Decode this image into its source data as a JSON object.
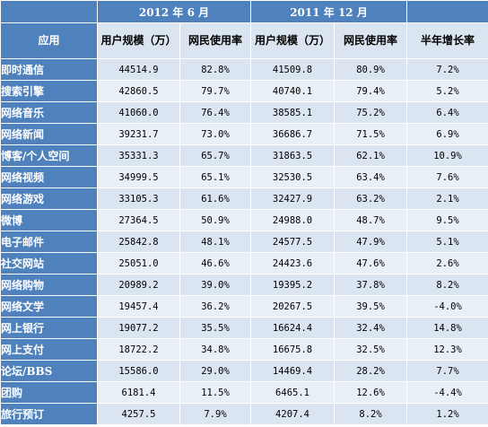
{
  "header": {
    "period_2012": "2012 年 6 月",
    "period_2011": "2011 年 12 月",
    "col_app": "应用",
    "col_users_2012": "用户规模（万）",
    "col_rate_2012": "网民使用率",
    "col_users_2011": "用户规模（万）",
    "col_rate_2011": "网民使用率",
    "col_growth": "半年增长率"
  },
  "rows": [
    {
      "app": "即时通信",
      "u2012": "44514.9",
      "r2012": "82.8%",
      "u2011": "41509.8",
      "r2011": "80.9%",
      "growth": "7.2%"
    },
    {
      "app": "搜索引擎",
      "u2012": "42860.5",
      "r2012": "79.7%",
      "u2011": "40740.1",
      "r2011": "79.4%",
      "growth": "5.2%"
    },
    {
      "app": "网络音乐",
      "u2012": "41060.0",
      "r2012": "76.4%",
      "u2011": "38585.1",
      "r2011": "75.2%",
      "growth": "6.4%"
    },
    {
      "app": "网络新闻",
      "u2012": "39231.7",
      "r2012": "73.0%",
      "u2011": "36686.7",
      "r2011": "71.5%",
      "growth": "6.9%"
    },
    {
      "app": "博客/个人空间",
      "u2012": "35331.3",
      "r2012": "65.7%",
      "u2011": "31863.5",
      "r2011": "62.1%",
      "growth": "10.9%"
    },
    {
      "app": "网络视频",
      "u2012": "34999.5",
      "r2012": "65.1%",
      "u2011": "32530.5",
      "r2011": "63.4%",
      "growth": "7.6%"
    },
    {
      "app": "网络游戏",
      "u2012": "33105.3",
      "r2012": "61.6%",
      "u2011": "32427.9",
      "r2011": "63.2%",
      "growth": "2.1%"
    },
    {
      "app": "微博",
      "u2012": "27364.5",
      "r2012": "50.9%",
      "u2011": "24988.0",
      "r2011": "48.7%",
      "growth": "9.5%"
    },
    {
      "app": "电子邮件",
      "u2012": "25842.8",
      "r2012": "48.1%",
      "u2011": "24577.5",
      "r2011": "47.9%",
      "growth": "5.1%"
    },
    {
      "app": "社交网站",
      "u2012": "25051.0",
      "r2012": "46.6%",
      "u2011": "24423.6",
      "r2011": "47.6%",
      "growth": "2.6%"
    },
    {
      "app": "网络购物",
      "u2012": "20989.2",
      "r2012": "39.0%",
      "u2011": "19395.2",
      "r2011": "37.8%",
      "growth": "8.2%"
    },
    {
      "app": "网络文学",
      "u2012": "19457.4",
      "r2012": "36.2%",
      "u2011": "20267.5",
      "r2011": "39.5%",
      "growth": "-4.0%"
    },
    {
      "app": "网上银行",
      "u2012": "19077.2",
      "r2012": "35.5%",
      "u2011": "16624.4",
      "r2011": "32.4%",
      "growth": "14.8%"
    },
    {
      "app": "网上支付",
      "u2012": "18722.2",
      "r2012": "34.8%",
      "u2011": "16675.8",
      "r2011": "32.5%",
      "growth": "12.3%"
    },
    {
      "app": "论坛/BBS",
      "u2012": "15586.0",
      "r2012": "29.0%",
      "u2011": "14469.4",
      "r2011": "28.2%",
      "growth": "7.7%"
    },
    {
      "app": "团购",
      "u2012": "6181.4",
      "r2012": "11.5%",
      "u2011": "6465.1",
      "r2011": "12.6%",
      "growth": "-4.4%"
    },
    {
      "app": "旅行预订",
      "u2012": "4257.5",
      "r2012": "7.9%",
      "u2011": "4207.4",
      "r2011": "8.2%",
      "growth": "1.2%"
    }
  ]
}
